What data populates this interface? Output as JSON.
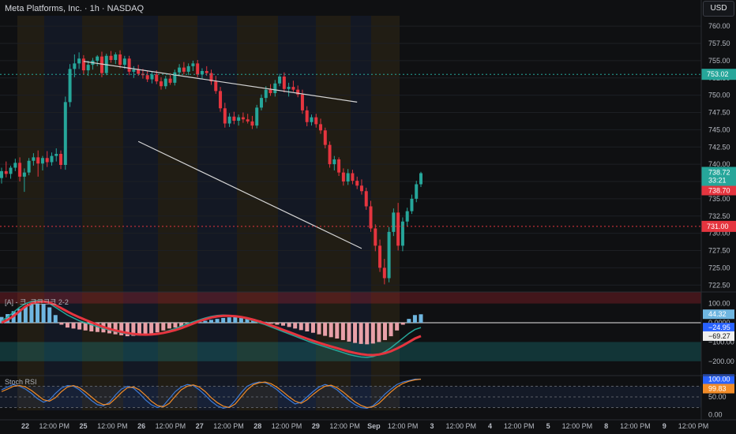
{
  "header": {
    "title": "Meta Platforms, Inc. · 1h · NASDAQ",
    "currency": "USD"
  },
  "indicators": {
    "macd_label": "[A] - 크. 크크크크 2-2",
    "stoch_label": "Stoch RSI"
  },
  "colors": {
    "up": "#26a69a",
    "down": "#e5353f",
    "bg": "#0f1012",
    "trendline": "#d4d4d4"
  },
  "chart_data": [
    {
      "type": "candlestick",
      "title": "Meta Platforms, Inc. · 1h · NASDAQ",
      "ylim": [
        721.5,
        761.5
      ],
      "y_ticks": [
        "760.00",
        "757.50",
        "755.00",
        "752.50",
        "750.00",
        "747.50",
        "745.00",
        "742.50",
        "740.00",
        "737.50",
        "735.00",
        "732.50",
        "730.00",
        "727.50",
        "725.00",
        "722.50"
      ],
      "x_ticks": [
        "22",
        "12:00 PM",
        "25",
        "12:00 PM",
        "26",
        "12:00 PM",
        "27",
        "12:00 PM",
        "28",
        "12:00 PM",
        "29",
        "12:00 PM",
        "Sep",
        "12:00 PM",
        "3",
        "12:00 PM",
        "4",
        "12:00 PM",
        "5",
        "12:00 PM",
        "8",
        "12:00 PM",
        "9",
        "12:00 PM"
      ],
      "candles": [
        [
          738.0,
          739.5,
          737.2,
          739.0
        ],
        [
          739.0,
          740.4,
          738.1,
          738.6
        ],
        [
          738.6,
          739.8,
          737.9,
          739.5
        ],
        [
          739.5,
          740.8,
          739.0,
          740.2
        ],
        [
          740.2,
          741.0,
          737.5,
          738.2
        ],
        [
          738.2,
          739.4,
          736.0,
          738.8
        ],
        [
          738.8,
          740.9,
          738.4,
          740.5
        ],
        [
          740.5,
          741.6,
          739.8,
          741.0
        ],
        [
          741.0,
          742.0,
          738.2,
          740.1
        ],
        [
          740.1,
          741.2,
          739.1,
          740.9
        ],
        [
          740.9,
          741.9,
          739.6,
          740.3
        ],
        [
          740.3,
          741.7,
          739.8,
          741.2
        ],
        [
          741.2,
          742.3,
          740.4,
          741.5
        ],
        [
          741.5,
          742.0,
          739.3,
          739.9
        ],
        [
          739.9,
          749.8,
          739.2,
          749.0
        ],
        [
          749.0,
          754.5,
          748.3,
          753.8
        ],
        [
          753.8,
          755.9,
          752.6,
          754.6
        ],
        [
          754.6,
          756.2,
          753.8,
          755.3
        ],
        [
          755.3,
          755.8,
          753.0,
          753.6
        ],
        [
          753.6,
          755.0,
          752.8,
          754.4
        ],
        [
          754.4,
          755.4,
          753.7,
          755.0
        ],
        [
          755.0,
          755.8,
          754.2,
          755.6
        ],
        [
          755.6,
          756.3,
          752.6,
          753.2
        ],
        [
          753.2,
          756.0,
          752.9,
          755.7
        ],
        [
          755.7,
          756.4,
          754.7,
          755.1
        ],
        [
          755.1,
          756.2,
          754.5,
          755.9
        ],
        [
          755.9,
          756.5,
          753.9,
          754.4
        ],
        [
          754.4,
          755.7,
          753.8,
          755.3
        ],
        [
          755.3,
          755.7,
          752.9,
          753.4
        ],
        [
          753.4,
          754.2,
          752.5,
          753.7
        ],
        [
          753.7,
          754.4,
          752.8,
          753.1
        ],
        [
          753.1,
          753.8,
          752.4,
          752.9
        ],
        [
          752.9,
          753.5,
          751.9,
          752.3
        ],
        [
          752.3,
          753.4,
          751.7,
          753.0
        ],
        [
          753.0,
          753.6,
          751.6,
          752.0
        ],
        [
          752.0,
          752.6,
          750.8,
          751.3
        ],
        [
          751.3,
          752.8,
          750.9,
          752.4
        ],
        [
          752.4,
          753.2,
          751.5,
          751.8
        ],
        [
          751.8,
          753.7,
          751.4,
          753.3
        ],
        [
          753.3,
          754.5,
          752.8,
          754.0
        ],
        [
          754.0,
          754.8,
          753.0,
          753.4
        ],
        [
          753.4,
          754.6,
          752.9,
          754.2
        ],
        [
          754.2,
          755.0,
          753.5,
          754.6
        ],
        [
          754.6,
          755.1,
          752.6,
          753.0
        ],
        [
          753.0,
          753.9,
          752.3,
          753.5
        ],
        [
          753.5,
          754.2,
          752.8,
          753.2
        ],
        [
          753.2,
          753.7,
          751.5,
          752.0
        ],
        [
          752.0,
          752.8,
          750.2,
          750.6
        ],
        [
          750.6,
          751.2,
          747.6,
          748.1
        ],
        [
          748.1,
          748.9,
          745.3,
          745.9
        ],
        [
          745.9,
          747.4,
          745.4,
          746.9
        ],
        [
          746.9,
          747.6,
          745.8,
          746.3
        ],
        [
          746.3,
          747.2,
          745.6,
          746.8
        ],
        [
          746.8,
          747.5,
          746.0,
          746.5
        ],
        [
          746.5,
          747.3,
          745.9,
          746.2
        ],
        [
          746.2,
          747.0,
          745.1,
          745.6
        ],
        [
          745.6,
          748.6,
          745.2,
          748.2
        ],
        [
          748.2,
          750.1,
          747.8,
          749.6
        ],
        [
          749.6,
          751.3,
          749.0,
          750.8
        ],
        [
          750.8,
          751.6,
          749.9,
          750.3
        ],
        [
          750.3,
          752.2,
          749.8,
          751.7
        ],
        [
          751.7,
          753.1,
          751.3,
          752.7
        ],
        [
          752.7,
          753.3,
          750.4,
          750.9
        ],
        [
          750.9,
          751.8,
          749.8,
          751.2
        ],
        [
          751.2,
          752.1,
          750.5,
          750.8
        ],
        [
          750.8,
          751.4,
          749.7,
          750.1
        ],
        [
          750.1,
          750.8,
          747.3,
          747.8
        ],
        [
          747.8,
          748.4,
          745.5,
          746.1
        ],
        [
          746.1,
          747.2,
          745.6,
          746.8
        ],
        [
          746.8,
          747.3,
          745.3,
          745.8
        ],
        [
          745.8,
          746.6,
          744.4,
          744.9
        ],
        [
          744.9,
          745.3,
          742.3,
          742.8
        ],
        [
          742.8,
          743.3,
          739.5,
          740.0
        ],
        [
          740.0,
          741.2,
          739.1,
          740.7
        ],
        [
          740.7,
          741.0,
          738.3,
          738.8
        ],
        [
          738.8,
          739.4,
          736.9,
          737.5
        ],
        [
          737.5,
          739.3,
          737.0,
          738.7
        ],
        [
          738.7,
          739.2,
          737.1,
          737.6
        ],
        [
          737.6,
          738.2,
          736.4,
          736.9
        ],
        [
          736.9,
          737.8,
          735.6,
          736.1
        ],
        [
          736.1,
          736.6,
          733.4,
          733.9
        ],
        [
          733.9,
          734.7,
          730.2,
          730.7
        ],
        [
          730.7,
          731.3,
          727.4,
          728.2
        ],
        [
          728.2,
          729.1,
          724.4,
          725.0
        ],
        [
          725.0,
          726.3,
          722.6,
          723.5
        ],
        [
          723.5,
          730.9,
          722.9,
          730.2
        ],
        [
          730.2,
          733.6,
          729.6,
          733.0
        ],
        [
          733.0,
          734.4,
          727.5,
          728.2
        ],
        [
          728.2,
          732.3,
          727.4,
          731.7
        ],
        [
          731.7,
          733.7,
          731.0,
          733.2
        ],
        [
          733.2,
          735.6,
          732.8,
          735.0
        ],
        [
          735.0,
          737.6,
          734.5,
          737.1
        ],
        [
          737.1,
          738.9,
          736.7,
          738.7
        ]
      ],
      "trendlines": [
        {
          "name": "upper",
          "from": [
            18,
            754.9
          ],
          "to": [
            78,
            749.0
          ]
        },
        {
          "name": "lower",
          "from": [
            30,
            743.3
          ],
          "to": [
            79,
            727.8
          ]
        }
      ],
      "horizontal_lines": [
        {
          "value": 753.02,
          "color": "#26a69a",
          "label": "753.02"
        },
        {
          "value": 731.0,
          "color": "#e5353f",
          "label": "731.00"
        }
      ],
      "price_labels": [
        {
          "text": "738.72",
          "sub": "33:21",
          "color": "#26a69a"
        },
        {
          "text": "738.70",
          "color": "#e5353f"
        }
      ]
    },
    {
      "type": "bar",
      "title": "[A] - 크. 크크크크 2-2",
      "ylim": [
        -250,
        160
      ],
      "y_ticks": [
        "100.00",
        "0.0000",
        "−100.00",
        "−200.00"
      ],
      "zero_line": 0,
      "histogram": [
        30,
        45,
        60,
        72,
        85,
        95,
        100,
        98,
        80,
        40,
        -10,
        -25,
        -30,
        -35,
        -40,
        -45,
        -48,
        -50,
        -55,
        -60,
        -65,
        -70,
        -68,
        -65,
        -60,
        -55,
        -50,
        -40,
        -30,
        -25,
        -20,
        -10,
        -5,
        5,
        10,
        15,
        20,
        25,
        28,
        30,
        28,
        25,
        20,
        12,
        5,
        -5,
        -10,
        -15,
        -22,
        -30,
        -38,
        -45,
        -52,
        -60,
        -68,
        -75,
        -82,
        -90,
        -98,
        -105,
        -110,
        -112,
        -108,
        -100,
        -90,
        -70,
        -40,
        -10,
        20,
        40,
        44
      ],
      "series": [
        {
          "name": "",
          "color": "#26a69a",
          "values": [
            10,
            30,
            55,
            80,
            100,
            110,
            115,
            112,
            100,
            80,
            60,
            40,
            25,
            10,
            0,
            -10,
            -20,
            -30,
            -38,
            -45,
            -52,
            -58,
            -62,
            -64,
            -64,
            -62,
            -58,
            -50,
            -40,
            -30,
            -18,
            -5,
            5,
            15,
            25,
            33,
            38,
            40,
            38,
            34,
            28,
            20,
            10,
            0,
            -10,
            -22,
            -34,
            -46,
            -58,
            -70,
            -82,
            -94,
            -105,
            -115,
            -125,
            -135,
            -145,
            -155,
            -165,
            -172,
            -178,
            -180,
            -176,
            -165,
            -150,
            -130,
            -105,
            -80,
            -55,
            -35,
            -24.95
          ]
        },
        {
          "name": "",
          "color": "#e5353f",
          "values": [
            0,
            15,
            35,
            60,
            85,
            100,
            108,
            110,
            105,
            92,
            75,
            58,
            42,
            28,
            15,
            2,
            -10,
            -22,
            -32,
            -40,
            -47,
            -53,
            -58,
            -61,
            -62,
            -61,
            -58,
            -53,
            -46,
            -38,
            -28,
            -16,
            -4,
            8,
            18,
            27,
            33,
            36,
            36,
            34,
            30,
            24,
            16,
            7,
            -3,
            -14,
            -25,
            -37,
            -48,
            -60,
            -72,
            -83,
            -94,
            -104,
            -114,
            -123,
            -132,
            -141,
            -150,
            -157,
            -163,
            -167,
            -168,
            -165,
            -158,
            -148,
            -134,
            -118,
            -100,
            -82,
            -69.27
          ]
        }
      ],
      "value_labels": [
        "44.32",
        "−24.95",
        "−69.27"
      ]
    },
    {
      "type": "line",
      "title": "Stoch RSI",
      "ylim": [
        -10,
        110
      ],
      "y_ticks": [
        "100.00",
        "50.00",
        "0.00"
      ],
      "bands": [
        80,
        50,
        20
      ],
      "series": [
        {
          "name": "",
          "color": "#3d7bd9",
          "values": [
            70,
            78,
            85,
            80,
            72,
            60,
            45,
            35,
            42,
            60,
            75,
            82,
            80,
            70,
            55,
            40,
            28,
            25,
            35,
            55,
            72,
            80,
            75,
            60,
            42,
            28,
            20,
            25,
            45,
            65,
            78,
            85,
            82,
            70,
            55,
            38,
            25,
            18,
            22,
            40,
            62,
            80,
            88,
            92,
            90,
            82,
            70,
            55,
            42,
            30,
            35,
            50,
            65,
            78,
            85,
            80,
            70,
            55,
            40,
            28,
            20,
            18,
            25,
            40,
            58,
            72,
            85,
            92,
            96,
            100,
            100
          ]
        },
        {
          "name": "",
          "color": "#f28c28",
          "values": [
            65,
            72,
            80,
            82,
            78,
            68,
            55,
            42,
            38,
            48,
            65,
            78,
            82,
            76,
            64,
            50,
            36,
            28,
            30,
            45,
            62,
            76,
            78,
            70,
            55,
            38,
            26,
            22,
            32,
            52,
            70,
            80,
            84,
            78,
            65,
            48,
            34,
            24,
            20,
            30,
            50,
            70,
            84,
            90,
            92,
            87,
            77,
            64,
            50,
            38,
            32,
            42,
            57,
            70,
            80,
            83,
            76,
            64,
            50,
            36,
            26,
            20,
            22,
            32,
            48,
            64,
            78,
            88,
            94,
            98,
            99.83
          ]
        }
      ],
      "value_labels": [
        "100.00",
        "99.83"
      ]
    }
  ]
}
